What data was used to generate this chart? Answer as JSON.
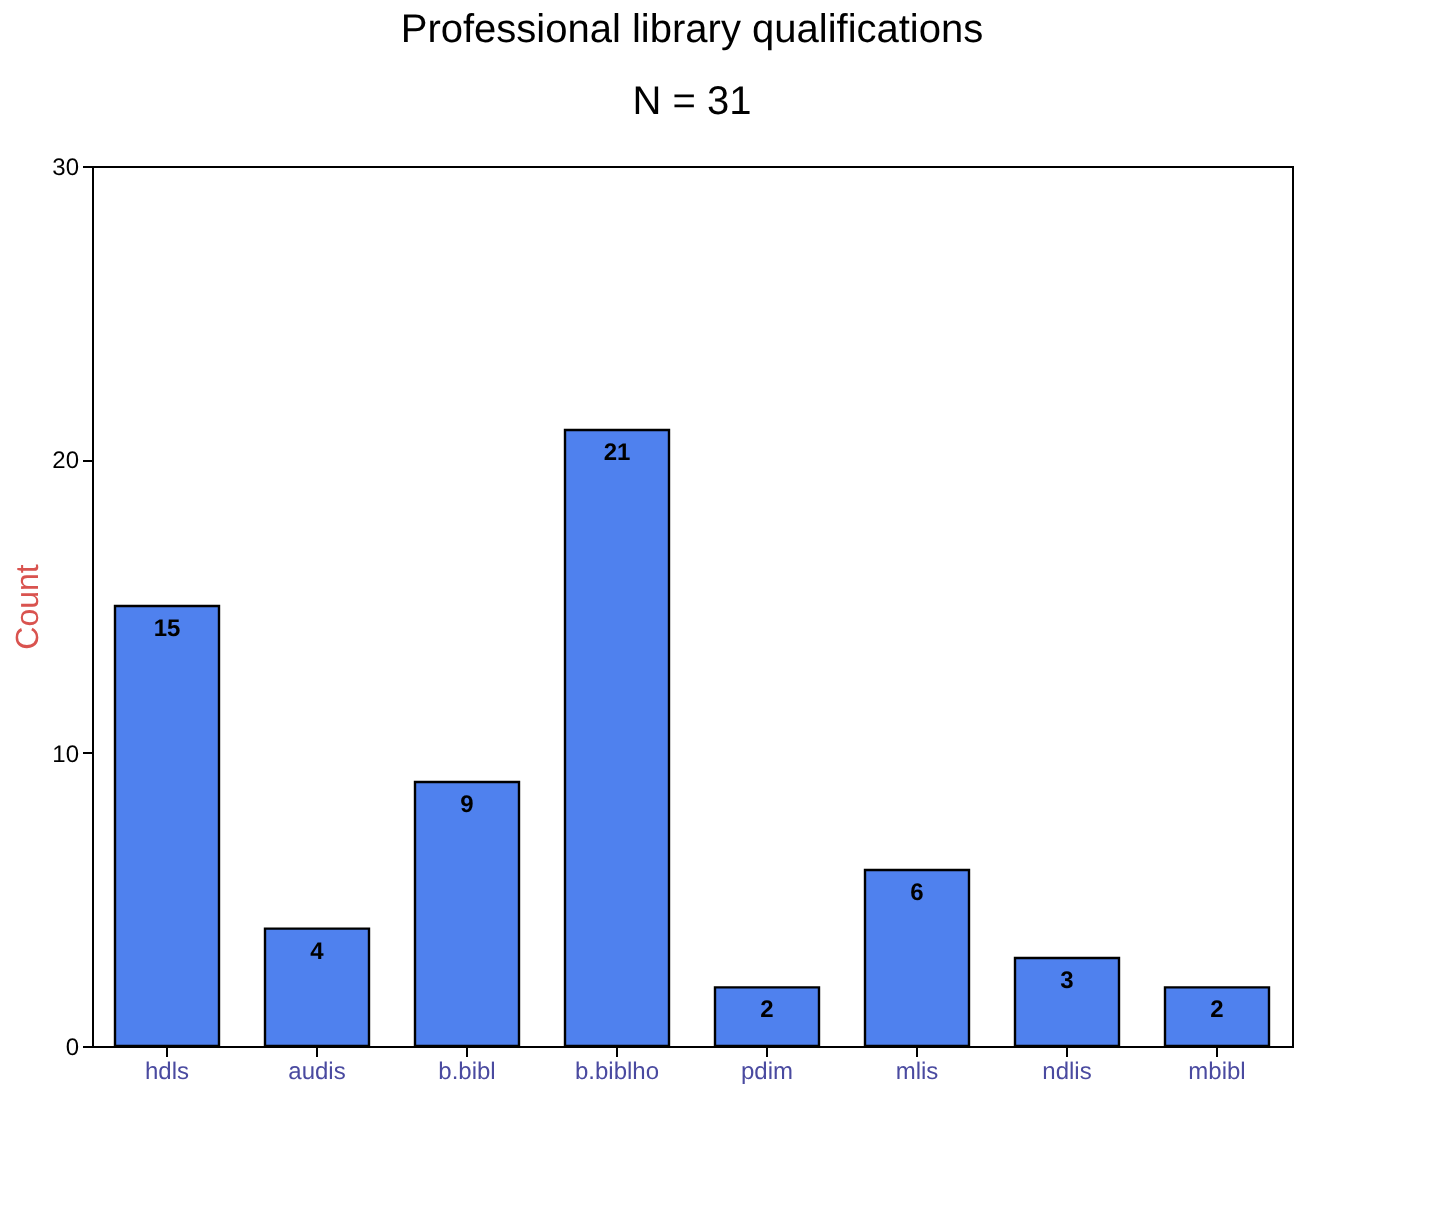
{
  "chart_data": {
    "type": "bar",
    "title": "Professional library qualifications",
    "subtitle": "N = 31",
    "ylabel": "Count",
    "categories": [
      "hdls",
      "audis",
      "b.bibl",
      "b.biblho",
      "pdim",
      "mlis",
      "ndlis",
      "mbibl"
    ],
    "values": [
      15,
      4,
      9,
      21,
      2,
      6,
      3,
      2
    ],
    "color": "#4f81ee",
    "ylim": [
      0,
      30
    ],
    "yticks": [
      0,
      10,
      20,
      30
    ],
    "grid": false,
    "data_labels": true
  }
}
